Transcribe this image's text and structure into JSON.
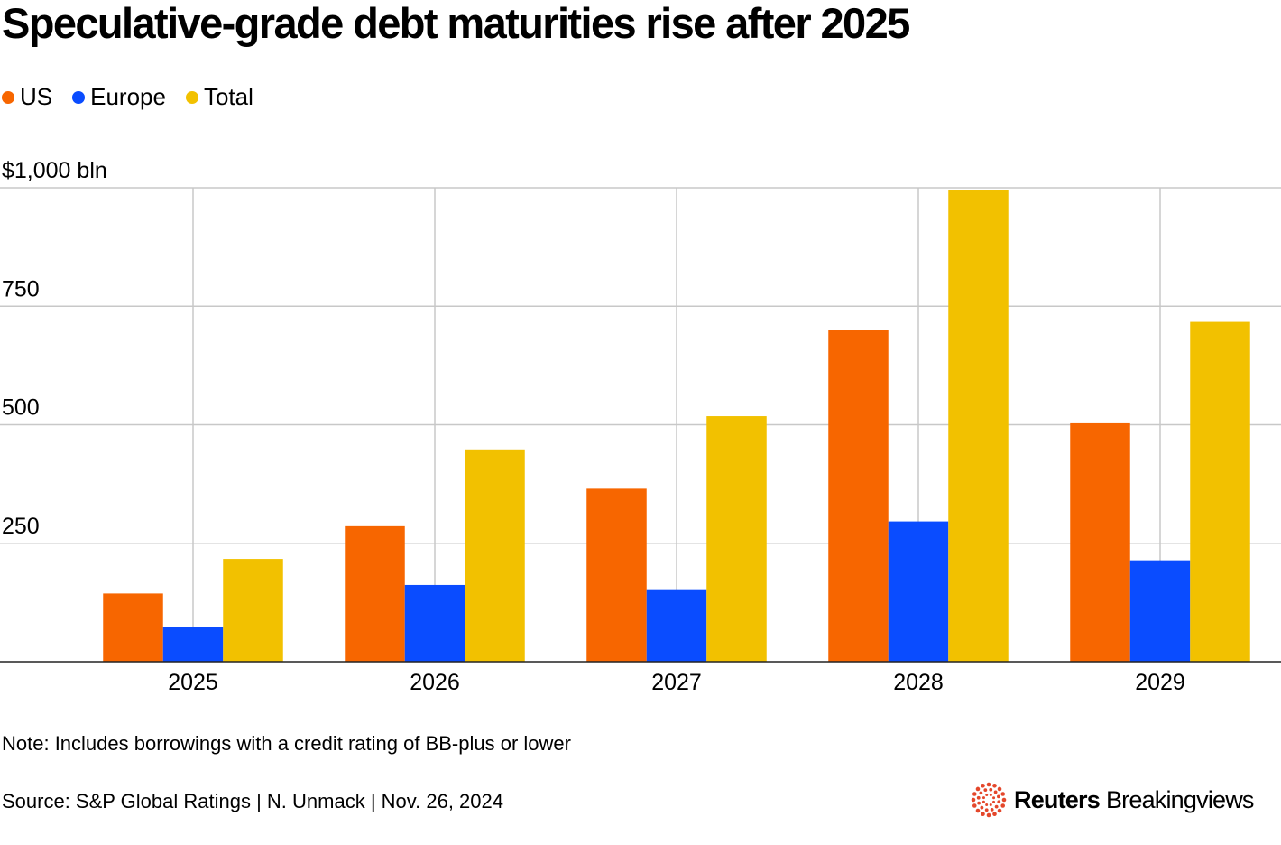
{
  "title": "Speculative-grade debt maturities rise after 2025",
  "legend": [
    {
      "label": "US",
      "color": "#f76600"
    },
    {
      "label": "Europe",
      "color": "#0a4cff"
    },
    {
      "label": "Total",
      "color": "#f2c100"
    }
  ],
  "chart_data": {
    "type": "bar",
    "title": "Speculative-grade debt maturities rise after 2025",
    "xlabel": "",
    "ylabel": "$ bln",
    "ylim": [
      0,
      1000
    ],
    "yticks": [
      250,
      500,
      750,
      1000
    ],
    "ytick_labels": [
      "250",
      "500",
      "750",
      "$1,000 bln"
    ],
    "categories": [
      "2025",
      "2026",
      "2027",
      "2028",
      "2029"
    ],
    "series": [
      {
        "name": "US",
        "color": "#f76600",
        "values": [
          144,
          286,
          365,
          700,
          503
        ]
      },
      {
        "name": "Europe",
        "color": "#0a4cff",
        "values": [
          73,
          162,
          153,
          296,
          214
        ]
      },
      {
        "name": "Total",
        "color": "#f2c100",
        "values": [
          217,
          448,
          518,
          996,
          717
        ]
      }
    ],
    "grid": true,
    "legend_position": "top-left"
  },
  "note": "Note: Includes borrowings with a credit rating of BB-plus or lower",
  "source": "Source: S&P Global Ratings | N. Unmack | Nov. 26, 2024",
  "brand": {
    "name": "Reuters",
    "sub": "Breakingviews",
    "color": "#e4472b"
  }
}
